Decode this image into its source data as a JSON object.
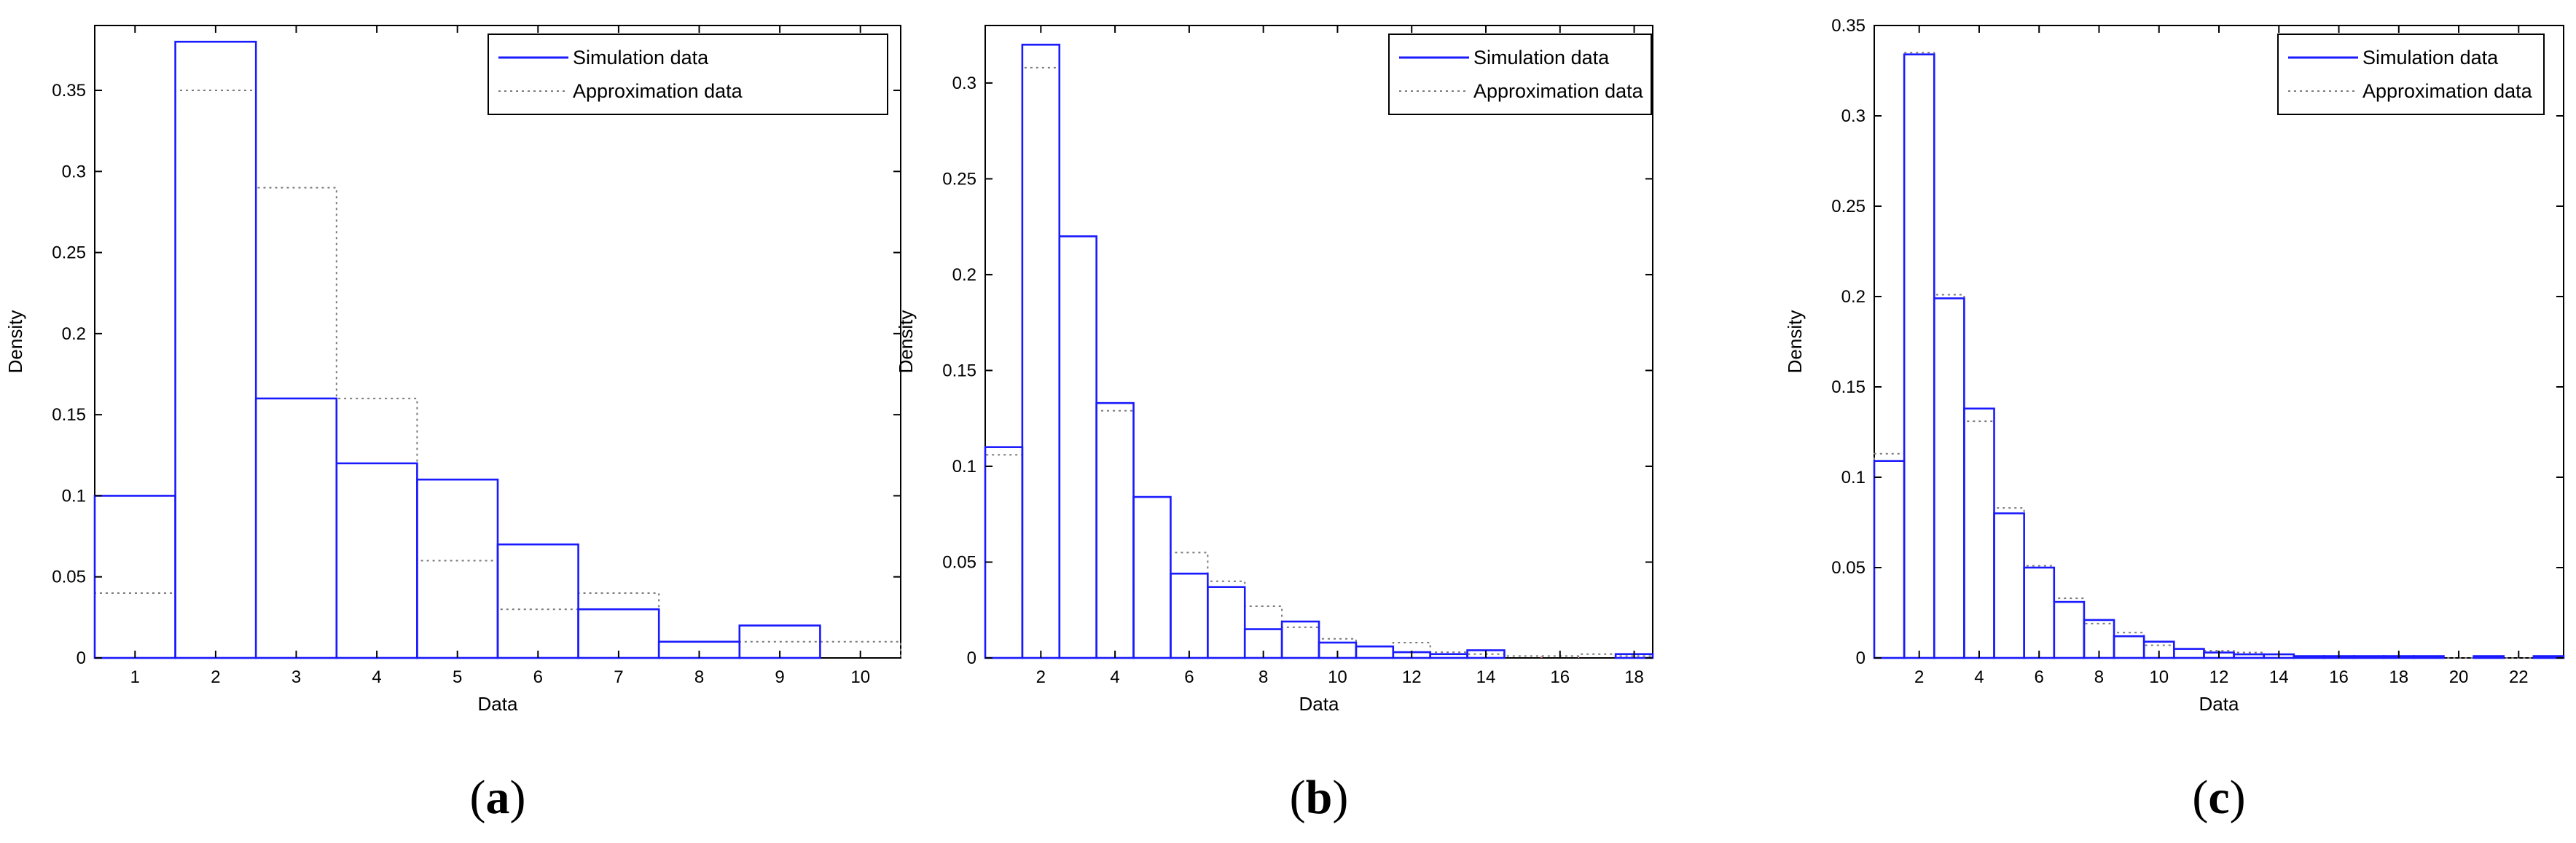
{
  "figure": {
    "colors": {
      "simulation": "#1a1aff",
      "approximation": "#7a7a7a",
      "approx_stems": "#d98080",
      "axes": "#000000"
    },
    "legend": {
      "simulation_label": "Simulation data",
      "approximation_label": "Approximation data",
      "placement": "top-right"
    }
  },
  "chart_data": [
    {
      "type": "histogram",
      "panel_label": "a",
      "xlabel": "Data",
      "ylabel": "Density",
      "xlim": [
        0.5,
        10.5
      ],
      "ylim": [
        0,
        0.39
      ],
      "bin_width": 1,
      "bin_centers": [
        1,
        2,
        3,
        4,
        5,
        6,
        7,
        8,
        9,
        10
      ],
      "series": [
        {
          "name": "Simulation data",
          "values": [
            0.1,
            0.38,
            0.16,
            0.12,
            0.11,
            0.07,
            0.03,
            0.01,
            0.02,
            0.0
          ]
        },
        {
          "name": "Approximation data",
          "values": [
            0.04,
            0.35,
            0.29,
            0.16,
            0.06,
            0.03,
            0.04,
            0.01,
            0.01,
            0.01
          ]
        }
      ],
      "xticks": [
        1,
        2,
        3,
        4,
        5,
        6,
        7,
        8,
        9,
        10
      ],
      "xtick_labels": [
        "1",
        "2",
        "3",
        "4",
        "5",
        "6",
        "7",
        "8",
        "9",
        "10"
      ],
      "yticks": [
        0,
        0.05,
        0.1,
        0.15,
        0.2,
        0.25,
        0.3,
        0.35
      ],
      "ytick_labels": [
        "0",
        "0.05",
        "0.1",
        "0.15",
        "0.2",
        "0.25",
        "0.3",
        "0.35"
      ]
    },
    {
      "type": "histogram",
      "panel_label": "b",
      "xlabel": "Data",
      "ylabel": "Density",
      "xlim": [
        0.5,
        18.5
      ],
      "ylim": [
        0,
        0.33
      ],
      "bin_width": 1,
      "bin_centers": [
        1,
        2,
        3,
        4,
        5,
        6,
        7,
        8,
        9,
        10,
        11,
        12,
        13,
        14,
        15,
        16,
        17,
        18
      ],
      "series": [
        {
          "name": "Simulation data",
          "values": [
            0.11,
            0.32,
            0.22,
            0.133,
            0.084,
            0.044,
            0.037,
            0.015,
            0.019,
            0.008,
            0.006,
            0.003,
            0.002,
            0.004,
            0.0,
            0.0,
            0.0,
            0.002
          ]
        },
        {
          "name": "Approximation data",
          "values": [
            0.106,
            0.308,
            0.22,
            0.129,
            0.084,
            0.055,
            0.04,
            0.027,
            0.016,
            0.01,
            0.006,
            0.008,
            0.003,
            0.002,
            0.001,
            0.001,
            0.002,
            0.001
          ]
        }
      ],
      "xticks": [
        2,
        4,
        6,
        8,
        10,
        12,
        14,
        16,
        18
      ],
      "xtick_labels": [
        "2",
        "4",
        "6",
        "8",
        "10",
        "12",
        "14",
        "16",
        "18"
      ],
      "yticks": [
        0,
        0.05,
        0.1,
        0.15,
        0.2,
        0.25,
        0.3
      ],
      "ytick_labels": [
        "0",
        "0.05",
        "0.1",
        "0.15",
        "0.2",
        "0.25",
        "0.3"
      ]
    },
    {
      "type": "histogram",
      "panel_label": "c",
      "xlabel": "Data",
      "ylabel": "Density",
      "xlim": [
        0.5,
        23.5
      ],
      "ylim": [
        0,
        0.35
      ],
      "bin_width": 1,
      "bin_centers": [
        1,
        2,
        3,
        4,
        5,
        6,
        7,
        8,
        9,
        10,
        11,
        12,
        13,
        14,
        15,
        16,
        17,
        18,
        19,
        20,
        21,
        22,
        23
      ],
      "series": [
        {
          "name": "Simulation data",
          "values": [
            0.109,
            0.334,
            0.199,
            0.138,
            0.08,
            0.05,
            0.031,
            0.021,
            0.012,
            0.009,
            0.005,
            0.003,
            0.002,
            0.002,
            0.001,
            0.001,
            0.001,
            0.001,
            0.001,
            0.0,
            0.001,
            0.0,
            0.001
          ]
        },
        {
          "name": "Approximation data",
          "values": [
            0.113,
            0.335,
            0.201,
            0.131,
            0.083,
            0.051,
            0.033,
            0.019,
            0.014,
            0.007,
            0.005,
            0.004,
            0.003,
            0.002,
            0.001,
            0.001,
            0.0,
            0.0,
            0.0,
            0.0,
            0.0,
            0.0,
            0.0
          ]
        }
      ],
      "xticks": [
        2,
        4,
        6,
        8,
        10,
        12,
        14,
        16,
        18,
        20,
        22
      ],
      "xtick_labels": [
        "2",
        "4",
        "6",
        "8",
        "10",
        "12",
        "14",
        "16",
        "18",
        "20",
        "22"
      ],
      "yticks": [
        0,
        0.05,
        0.1,
        0.15,
        0.2,
        0.25,
        0.3,
        0.35
      ],
      "ytick_labels": [
        "0",
        "0.05",
        "0.1",
        "0.15",
        "0.2",
        "0.25",
        "0.3",
        "0.35"
      ]
    }
  ]
}
